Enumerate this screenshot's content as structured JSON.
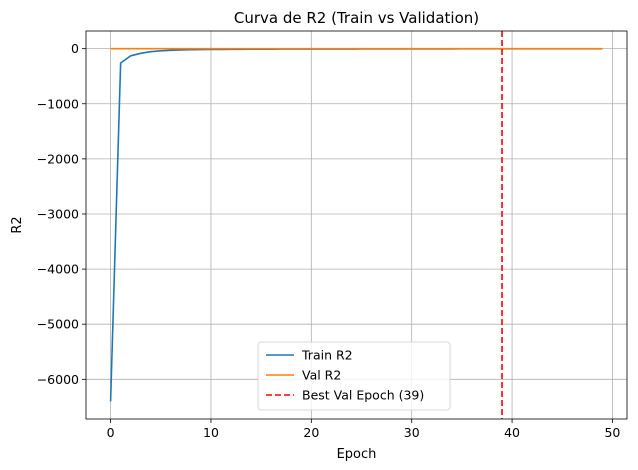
{
  "chart_data": {
    "type": "line",
    "title": "Curva de R2 (Train vs Validation)",
    "xlabel": "Epoch",
    "ylabel": "R2",
    "xlim": [
      -2.45,
      51.45
    ],
    "ylim": [
      -6720,
      320
    ],
    "xticks": [
      0,
      10,
      20,
      30,
      40,
      50
    ],
    "yticks": [
      -6000,
      -5000,
      -4000,
      -3000,
      -2000,
      -1000,
      0
    ],
    "ytick_labels": [
      "−6000",
      "−5000",
      "−4000",
      "−3000",
      "−2000",
      "−1000",
      "0"
    ],
    "grid": true,
    "legend_position": "lower center",
    "x": [
      0,
      1,
      2,
      3,
      4,
      5,
      6,
      7,
      8,
      9,
      10,
      11,
      12,
      13,
      14,
      15,
      16,
      17,
      18,
      19,
      20,
      21,
      22,
      23,
      24,
      25,
      26,
      27,
      28,
      29,
      30,
      31,
      32,
      33,
      34,
      35,
      36,
      37,
      38,
      39,
      40,
      41,
      42,
      43,
      44,
      45,
      46,
      47,
      48,
      49
    ],
    "series": [
      {
        "name": "Train R2",
        "color": "#1f77b4",
        "values": [
          -6400,
          -260,
          -130,
          -85,
          -55,
          -40,
          -30,
          -24,
          -20,
          -17,
          -15,
          -14,
          -13,
          -12,
          -11,
          -10,
          -10,
          -9,
          -9,
          -8,
          -8,
          -8,
          -7,
          -7,
          -7,
          -6,
          -6,
          -6,
          -6,
          -5,
          -5,
          -5,
          -5,
          -5,
          -5,
          -4,
          -4,
          -4,
          -4,
          -4,
          -4,
          -4,
          -4,
          -3,
          -3,
          -3,
          -3,
          -3,
          -3,
          -3
        ]
      },
      {
        "name": "Val R2",
        "color": "#ff7f0e",
        "values": [
          -1,
          -1,
          -1,
          -1,
          -1,
          -1,
          -1,
          -1,
          -1,
          -1,
          -1,
          -1,
          -1,
          -1,
          -1,
          -1,
          -1,
          -1,
          -1,
          -1,
          -1,
          -1,
          -1,
          -1,
          -1,
          -1,
          -1,
          -1,
          -1,
          -1,
          -1,
          -1,
          -1,
          -1,
          -1,
          -1,
          -1,
          -1,
          -1,
          -1,
          -1,
          -1,
          -1,
          -1,
          -1,
          -1,
          -1,
          -1,
          -1,
          -1
        ]
      }
    ],
    "vline": {
      "name": "Best Val Epoch (39)",
      "x": 39,
      "color": "#ff0000",
      "style": "dashed"
    }
  }
}
